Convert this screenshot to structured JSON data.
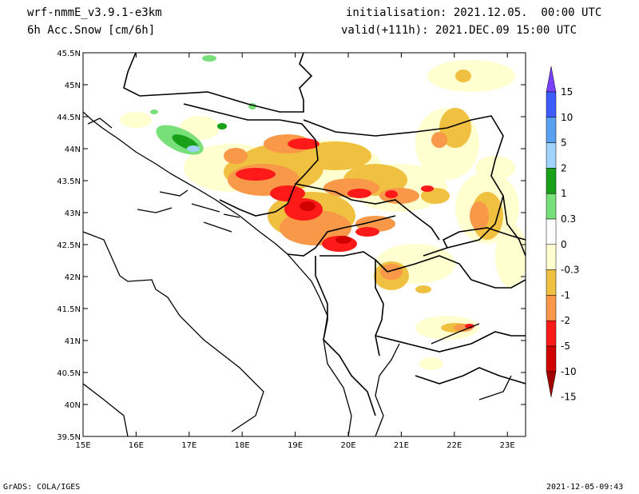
{
  "header": {
    "model": "wrf-nmmE_v3.9.1-e3km",
    "variable": "6h Acc.Snow [cm/6h]",
    "init": "initialisation: 2021.12.05.  00:00 UTC",
    "valid": "valid(+111h): 2021.DEC.09 15:00 UTC"
  },
  "footer": {
    "left": "GrADS: COLA/IGES",
    "right": "2021-12-05-09:43"
  },
  "axes": {
    "lat_labels": [
      "45.5N",
      "45N",
      "44.5N",
      "44N",
      "43.5N",
      "43N",
      "42.5N",
      "42N",
      "41.5N",
      "41N",
      "40.5N",
      "40N",
      "39.5N"
    ],
    "lon_labels": [
      "15E",
      "16E",
      "17E",
      "18E",
      "19E",
      "20E",
      "21E",
      "22E",
      "23E"
    ]
  },
  "colorbar": {
    "labels": [
      "15",
      "10",
      "5",
      "2",
      "1",
      "0.3",
      "0",
      "-0.3",
      "-1",
      "-2",
      "-5",
      "-10",
      "-15"
    ],
    "colors": [
      "#7a40ff",
      "#3c5cff",
      "#5aa0f0",
      "#a0d2fa",
      "#18a018",
      "#78e078",
      "#ffffff",
      "#ffffd0",
      "#f0c040",
      "#f89848",
      "#ff1a1a",
      "#d00000",
      "#a00000"
    ]
  },
  "map_colors": {
    "light": "#ffffd0",
    "yellow": "#f0c040",
    "orange": "#f89848",
    "red": "#ff1a1a",
    "dark_red": "#d00000",
    "light_green": "#78e078",
    "green": "#18a018",
    "light_blue": "#a0d2fa"
  }
}
